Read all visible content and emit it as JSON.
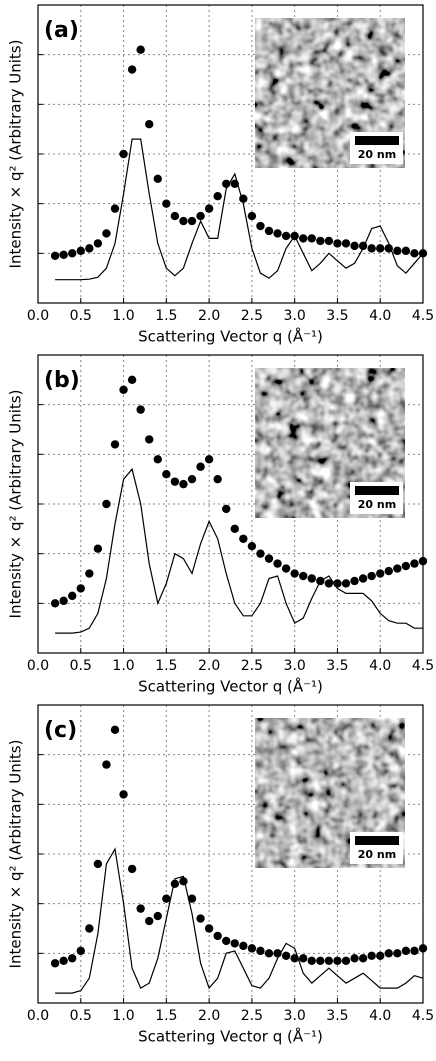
{
  "chart_data": [
    {
      "type": "line",
      "panel_label": "(a)",
      "inset_scalebar": "20 nm",
      "xlabel": "Scattering Vector q (Å⁻¹)",
      "ylabel": "Intensity × q² (Arbitrary Units)",
      "xlim": [
        0,
        4.5
      ],
      "ylim": [
        0,
        6
      ],
      "xticks": [
        {
          "value": 0,
          "label": "0.0"
        },
        0.5,
        {
          "value": 1,
          "label": "1.0"
        },
        1.5,
        {
          "value": 2,
          "label": "2.0"
        },
        2.5,
        {
          "value": 3,
          "label": "3.0"
        },
        3.5,
        {
          "value": 4,
          "label": "4.0"
        },
        4.5
      ],
      "yticks": [
        0,
        1,
        2,
        3,
        4,
        5,
        6
      ],
      "grid": true,
      "x": [
        0.2,
        0.3,
        0.4,
        0.5,
        0.6,
        0.7,
        0.8,
        0.9,
        1.0,
        1.1,
        1.2,
        1.3,
        1.4,
        1.5,
        1.6,
        1.7,
        1.8,
        1.9,
        2.0,
        2.1,
        2.2,
        2.3,
        2.4,
        2.5,
        2.6,
        2.7,
        2.8,
        2.9,
        3.0,
        3.1,
        3.2,
        3.3,
        3.4,
        3.5,
        3.6,
        3.7,
        3.8,
        3.9,
        4.0,
        4.1,
        4.2,
        4.3,
        4.4,
        4.5
      ],
      "series": [
        {
          "style": "markers",
          "color": "#000000",
          "values": [
            0.95,
            0.97,
            1.0,
            1.05,
            1.1,
            1.2,
            1.4,
            1.9,
            3.0,
            4.7,
            5.1,
            3.6,
            2.5,
            2.0,
            1.75,
            1.65,
            1.65,
            1.75,
            1.9,
            2.15,
            2.4,
            2.4,
            2.1,
            1.75,
            1.55,
            1.45,
            1.4,
            1.35,
            1.35,
            1.3,
            1.3,
            1.25,
            1.25,
            1.2,
            1.2,
            1.15,
            1.15,
            1.1,
            1.1,
            1.1,
            1.05,
            1.05,
            1.0,
            1.0
          ]
        },
        {
          "style": "line",
          "color": "#000000",
          "values": [
            0.47,
            0.47,
            0.47,
            0.47,
            0.48,
            0.52,
            0.7,
            1.2,
            2.2,
            3.3,
            3.3,
            2.2,
            1.2,
            0.7,
            0.55,
            0.7,
            1.2,
            1.65,
            1.3,
            1.3,
            2.3,
            2.6,
            2.0,
            1.1,
            0.6,
            0.5,
            0.65,
            1.1,
            1.35,
            1.0,
            0.65,
            0.8,
            1.0,
            0.85,
            0.7,
            0.8,
            1.1,
            1.5,
            1.55,
            1.2,
            0.75,
            0.6,
            0.8,
            1.0
          ]
        }
      ]
    },
    {
      "type": "line",
      "panel_label": "(b)",
      "inset_scalebar": "20 nm",
      "xlabel": "Scattering Vector q (Å⁻¹)",
      "ylabel": "Intensity × q² (Arbitrary Units)",
      "xlim": [
        0,
        4.5
      ],
      "ylim": [
        0,
        6
      ],
      "xticks": [
        {
          "value": 0,
          "label": "0.0"
        },
        0.5,
        {
          "value": 1,
          "label": "1.0"
        },
        1.5,
        {
          "value": 2,
          "label": "2.0"
        },
        2.5,
        {
          "value": 3,
          "label": "3.0"
        },
        3.5,
        {
          "value": 4,
          "label": "4.0"
        },
        4.5
      ],
      "yticks": [
        0,
        1,
        2,
        3,
        4,
        5,
        6
      ],
      "grid": true,
      "x": [
        0.2,
        0.3,
        0.4,
        0.5,
        0.6,
        0.7,
        0.8,
        0.9,
        1.0,
        1.1,
        1.2,
        1.3,
        1.4,
        1.5,
        1.6,
        1.7,
        1.8,
        1.9,
        2.0,
        2.1,
        2.2,
        2.3,
        2.4,
        2.5,
        2.6,
        2.7,
        2.8,
        2.9,
        3.0,
        3.1,
        3.2,
        3.3,
        3.4,
        3.5,
        3.6,
        3.7,
        3.8,
        3.9,
        4.0,
        4.1,
        4.2,
        4.3,
        4.4,
        4.5
      ],
      "series": [
        {
          "style": "markers",
          "color": "#000000",
          "values": [
            1.0,
            1.05,
            1.15,
            1.3,
            1.6,
            2.1,
            3.0,
            4.2,
            5.3,
            5.5,
            4.9,
            4.3,
            3.9,
            3.6,
            3.45,
            3.4,
            3.5,
            3.75,
            3.9,
            3.5,
            2.9,
            2.5,
            2.3,
            2.15,
            2.0,
            1.9,
            1.8,
            1.7,
            1.6,
            1.55,
            1.5,
            1.45,
            1.4,
            1.4,
            1.4,
            1.45,
            1.5,
            1.55,
            1.6,
            1.65,
            1.7,
            1.75,
            1.8,
            1.85
          ]
        },
        {
          "style": "line",
          "color": "#000000",
          "values": [
            0.4,
            0.4,
            0.4,
            0.42,
            0.5,
            0.8,
            1.5,
            2.6,
            3.5,
            3.7,
            3.0,
            1.8,
            1.0,
            1.4,
            2.0,
            1.9,
            1.6,
            2.2,
            2.65,
            2.3,
            1.6,
            1.0,
            0.75,
            0.75,
            1.0,
            1.5,
            1.55,
            1.0,
            0.6,
            0.7,
            1.1,
            1.45,
            1.55,
            1.3,
            1.2,
            1.2,
            1.2,
            1.05,
            0.8,
            0.65,
            0.6,
            0.6,
            0.5,
            0.5
          ]
        }
      ]
    },
    {
      "type": "line",
      "panel_label": "(c)",
      "inset_scalebar": "20 nm",
      "xlabel": "Scattering Vector q (Å⁻¹)",
      "ylabel": "Intensity × q² (Arbitrary Units)",
      "xlim": [
        0,
        4.5
      ],
      "ylim": [
        0,
        6
      ],
      "xticks": [
        {
          "value": 0,
          "label": "0.0"
        },
        0.5,
        {
          "value": 1,
          "label": "1.0"
        },
        1.5,
        {
          "value": 2,
          "label": "2.0"
        },
        2.5,
        {
          "value": 3,
          "label": "3.0"
        },
        3.5,
        {
          "value": 4,
          "label": "4.0"
        },
        4.5
      ],
      "yticks": [
        0,
        1,
        2,
        3,
        4,
        5,
        6
      ],
      "grid": true,
      "x": [
        0.2,
        0.3,
        0.4,
        0.5,
        0.6,
        0.7,
        0.8,
        0.9,
        1.0,
        1.1,
        1.2,
        1.3,
        1.4,
        1.5,
        1.6,
        1.7,
        1.8,
        1.9,
        2.0,
        2.1,
        2.2,
        2.3,
        2.4,
        2.5,
        2.6,
        2.7,
        2.8,
        2.9,
        3.0,
        3.1,
        3.2,
        3.3,
        3.4,
        3.5,
        3.6,
        3.7,
        3.8,
        3.9,
        4.0,
        4.1,
        4.2,
        4.3,
        4.4,
        4.5
      ],
      "series": [
        {
          "style": "markers",
          "color": "#000000",
          "values": [
            0.8,
            0.85,
            0.9,
            1.05,
            1.5,
            2.8,
            4.8,
            5.5,
            4.2,
            2.7,
            1.9,
            1.65,
            1.75,
            2.1,
            2.4,
            2.45,
            2.1,
            1.7,
            1.5,
            1.35,
            1.25,
            1.2,
            1.15,
            1.1,
            1.05,
            1.0,
            1.0,
            0.95,
            0.9,
            0.9,
            0.85,
            0.85,
            0.85,
            0.85,
            0.85,
            0.9,
            0.9,
            0.95,
            0.95,
            1.0,
            1.0,
            1.05,
            1.05,
            1.1
          ]
        },
        {
          "style": "line",
          "color": "#000000",
          "values": [
            0.2,
            0.2,
            0.2,
            0.25,
            0.5,
            1.4,
            2.8,
            3.1,
            2.0,
            0.7,
            0.3,
            0.4,
            0.9,
            1.7,
            2.5,
            2.55,
            1.8,
            0.8,
            0.3,
            0.5,
            1.0,
            1.05,
            0.7,
            0.35,
            0.3,
            0.5,
            0.9,
            1.2,
            1.1,
            0.6,
            0.4,
            0.55,
            0.7,
            0.55,
            0.4,
            0.5,
            0.6,
            0.45,
            0.3,
            0.3,
            0.3,
            0.4,
            0.55,
            0.5
          ]
        }
      ]
    }
  ]
}
